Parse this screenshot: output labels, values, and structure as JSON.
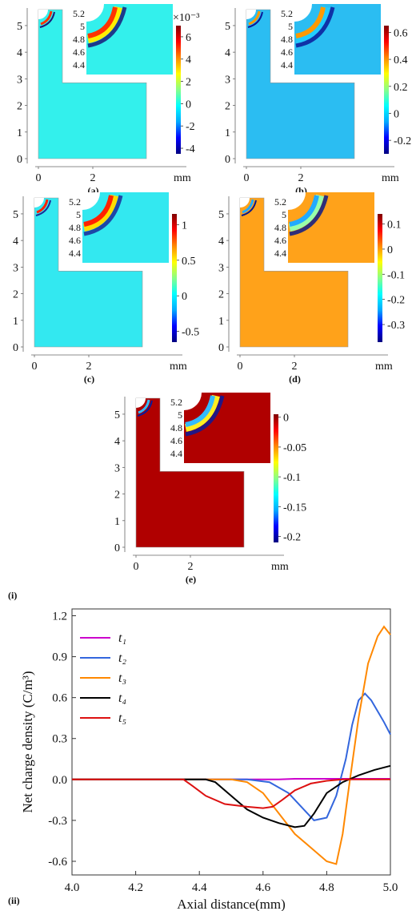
{
  "panels": [
    {
      "label": "(a)",
      "y_ticks": [
        "0",
        "1",
        "2",
        "3",
        "4",
        "5"
      ],
      "x_ticks": [
        "0",
        "2"
      ],
      "x_unit": "mm",
      "inset_ticks": [
        "5.2",
        "5",
        "4.8",
        "4.6",
        "4.4"
      ],
      "colorbar": {
        "exponent": "×10⁻³",
        "ticks": [
          "6",
          "4",
          "2",
          "0",
          "-2",
          "-4"
        ],
        "min": -4.5,
        "max": 7
      },
      "background": "#33f0ec",
      "blob": {
        "outer": "#1a1a7a",
        "inner": "#ff3300",
        "mid": "#ffee00"
      }
    },
    {
      "label": "(b)",
      "y_ticks": [
        "0",
        "1",
        "2",
        "3",
        "4",
        "5"
      ],
      "x_ticks": [
        "0",
        "2"
      ],
      "x_unit": "mm",
      "inset_ticks": [
        "5.2",
        "5",
        "4.8",
        "4.6",
        "4.4"
      ],
      "colorbar": {
        "exponent": "",
        "ticks": [
          "0.6",
          "0.4",
          "0.2",
          "0",
          "-0.2"
        ],
        "min": -0.3,
        "max": 0.65
      },
      "background": "#2bbdf2",
      "blob": {
        "outer": "#0a1a9a",
        "inner": "#ff9900",
        "mid": "#22ccff"
      }
    },
    {
      "label": "(c)",
      "y_ticks": [
        "0",
        "1",
        "2",
        "3",
        "4",
        "5"
      ],
      "x_ticks": [
        "0",
        "2"
      ],
      "x_unit": "mm",
      "inset_ticks": [
        "5.2",
        "5",
        "4.8",
        "4.6",
        "4.4"
      ],
      "colorbar": {
        "exponent": "",
        "ticks": [
          "1",
          "0.5",
          "0",
          "-0.5"
        ],
        "min": -0.65,
        "max": 1.15
      },
      "background": "#33e8f0",
      "blob": {
        "outer": "#1a2a9a",
        "inner": "#ff2200",
        "mid": "#ffdd00"
      }
    },
    {
      "label": "(d)",
      "y_ticks": [
        "0",
        "1",
        "2",
        "3",
        "4",
        "5"
      ],
      "x_ticks": [
        "0",
        "2"
      ],
      "x_unit": "mm",
      "inset_ticks": [
        "5.2",
        "5",
        "4.8",
        "4.6",
        "4.4"
      ],
      "colorbar": {
        "exponent": "",
        "ticks": [
          "0.1",
          "0",
          "-0.1",
          "-0.2",
          "-0.3"
        ],
        "min": -0.37,
        "max": 0.14
      },
      "background": "#ffa21a",
      "blob": {
        "outer": "#0a1a8a",
        "inner": "#22aaff",
        "mid": "#99ffaa"
      }
    },
    {
      "label": "(e)",
      "y_ticks": [
        "0",
        "1",
        "2",
        "3",
        "4",
        "5"
      ],
      "x_ticks": [
        "0",
        "2"
      ],
      "x_unit": "mm",
      "inset_ticks": [
        "5.2",
        "5",
        "4.8",
        "4.6",
        "4.4"
      ],
      "colorbar": {
        "exponent": "",
        "ticks": [
          "0",
          "-0.05",
          "-0.1",
          "-0.15",
          "-0.2"
        ],
        "min": -0.21,
        "max": 0.005
      },
      "background": "#b00000",
      "blob": {
        "outer": "#0a1a9a",
        "inner": "#33bbff",
        "mid": "#ffee22"
      }
    }
  ],
  "group_labels": {
    "top": "(i)",
    "bottom": "(ii)"
  },
  "colorbar_gradient": [
    "#000080",
    "#0000ff",
    "#00aaff",
    "#00ffff",
    "#88ff88",
    "#ffff00",
    "#ff8800",
    "#ff0000",
    "#800000"
  ],
  "chart_data": {
    "type": "line",
    "xlabel": "Axial distance(mm)",
    "ylabel": "Net charge density  (C/m³)",
    "xlim": [
      4.0,
      5.0
    ],
    "ylim": [
      -0.7,
      1.25
    ],
    "x_ticks": [
      "4.0",
      "4.2",
      "4.4",
      "4.6",
      "4.8",
      "5.0"
    ],
    "y_ticks": [
      "1.2",
      "0.9",
      "0.6",
      "0.3",
      "0.0",
      "-0.3",
      "-0.6"
    ],
    "legend_position": "top-left",
    "series": [
      {
        "name": "t₁",
        "color": "#cc00cc",
        "x": [
          4.0,
          4.5,
          4.6,
          4.65,
          4.7,
          4.75,
          4.8,
          5.0
        ],
        "y": [
          0,
          0,
          0,
          0,
          0.005,
          0.005,
          0.005,
          0.005
        ]
      },
      {
        "name": "t₂",
        "color": "#3366dd",
        "x": [
          4.0,
          4.55,
          4.62,
          4.68,
          4.72,
          4.76,
          4.8,
          4.83,
          4.86,
          4.88,
          4.9,
          4.92,
          4.94,
          4.96,
          4.98,
          5.0
        ],
        "y": [
          0,
          0,
          -0.02,
          -0.1,
          -0.2,
          -0.3,
          -0.28,
          -0.12,
          0.15,
          0.4,
          0.58,
          0.63,
          0.58,
          0.5,
          0.42,
          0.33
        ]
      },
      {
        "name": "t₃",
        "color": "#ff8800",
        "x": [
          4.0,
          4.5,
          4.55,
          4.6,
          4.65,
          4.7,
          4.75,
          4.8,
          4.83,
          4.85,
          4.87,
          4.9,
          4.93,
          4.96,
          4.98,
          5.0
        ],
        "y": [
          0,
          0,
          -0.02,
          -0.1,
          -0.25,
          -0.4,
          -0.5,
          -0.6,
          -0.62,
          -0.4,
          -0.05,
          0.45,
          0.85,
          1.05,
          1.12,
          1.06
        ]
      },
      {
        "name": "t₄",
        "color": "#000000",
        "x": [
          4.0,
          4.42,
          4.45,
          4.5,
          4.55,
          4.6,
          4.65,
          4.7,
          4.73,
          4.76,
          4.8,
          4.85,
          4.9,
          4.95,
          5.0
        ],
        "y": [
          0,
          0,
          -0.02,
          -0.12,
          -0.22,
          -0.28,
          -0.32,
          -0.35,
          -0.34,
          -0.25,
          -0.1,
          -0.02,
          0.03,
          0.07,
          0.1
        ]
      },
      {
        "name": "t₅",
        "color": "#dd1111",
        "x": [
          4.0,
          4.35,
          4.38,
          4.42,
          4.48,
          4.55,
          4.6,
          4.63,
          4.66,
          4.7,
          4.75,
          4.8,
          4.85,
          5.0
        ],
        "y": [
          0,
          0,
          -0.05,
          -0.12,
          -0.18,
          -0.2,
          -0.21,
          -0.2,
          -0.15,
          -0.08,
          -0.03,
          -0.01,
          0,
          0
        ]
      }
    ]
  }
}
